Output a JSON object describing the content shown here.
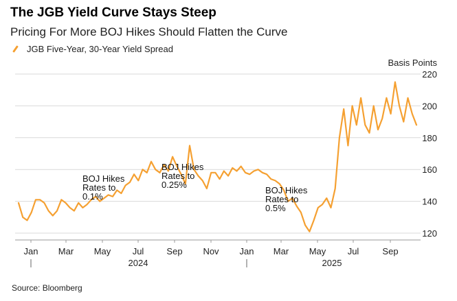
{
  "chart_data": {
    "type": "line",
    "title": "The JGB Yield Curve Stays Steep",
    "subtitle": "Pricing For More BOJ Hikes Should Flatten the Curve",
    "source": "Source: Bloomberg",
    "ylabel": "Basis Points",
    "ylim": [
      115,
      225
    ],
    "yticks": [
      120,
      140,
      160,
      180,
      200,
      220
    ],
    "x_tick_labels": [
      "Jan",
      "Mar",
      "May",
      "Jul",
      "Sep",
      "Nov",
      "Jan",
      "Mar",
      "May",
      "Jul",
      "Sep"
    ],
    "year_labels": [
      "2024",
      "2025"
    ],
    "series": [
      {
        "name": "JGB Five-Year, 30-Year Yield Spread",
        "color": "#f5a031",
        "x": [
          0,
          1,
          2,
          3,
          4,
          5,
          6,
          7,
          8,
          9,
          10,
          11,
          12,
          13,
          14,
          15,
          16,
          17,
          18,
          19,
          20,
          21,
          22,
          23,
          24,
          25,
          26,
          27,
          28,
          29,
          30,
          31,
          32,
          33,
          34,
          35,
          36,
          37,
          38,
          39,
          40,
          41,
          42,
          43,
          44,
          45,
          46,
          47,
          48,
          49,
          50,
          51,
          52,
          53,
          54,
          55,
          56,
          57,
          58,
          59,
          60,
          61,
          62,
          63,
          64,
          65,
          66,
          67,
          68,
          69,
          70,
          71,
          72,
          73,
          74,
          75,
          76,
          77,
          78,
          79,
          80,
          81,
          82,
          83,
          84,
          85,
          86,
          87,
          88,
          89,
          90,
          91,
          92,
          93
        ],
        "values": [
          139,
          130,
          128,
          133,
          141,
          141,
          139,
          134,
          131,
          134,
          141,
          139,
          136,
          134,
          139,
          136,
          138,
          141,
          143,
          140,
          142,
          144,
          143,
          147,
          145,
          150,
          152,
          157,
          153,
          160,
          158,
          165,
          160,
          158,
          163,
          159,
          168,
          162,
          157,
          151,
          175,
          160,
          156,
          153,
          148,
          158,
          158,
          154,
          159,
          156,
          161,
          159,
          162,
          158,
          157,
          159,
          160,
          158,
          157,
          154,
          153,
          151,
          147,
          140,
          142,
          137,
          133,
          125,
          121,
          128,
          136,
          138,
          142,
          136,
          148,
          180,
          198,
          175,
          200,
          188,
          205,
          188,
          183,
          200,
          185,
          192,
          205,
          195,
          215,
          200,
          190,
          205,
          195,
          188
        ]
      }
    ],
    "annotations": [
      {
        "lines": [
          "BOJ Hikes",
          "Rates to",
          "0.1%"
        ],
        "at_x": 29
      },
      {
        "lines": [
          "BOJ Hikes",
          "Rates to",
          "0.25%"
        ],
        "at_x": 40
      },
      {
        "lines": [
          "BOJ Hikes",
          "Rates to",
          "0.5%"
        ],
        "at_x": 76
      }
    ]
  }
}
